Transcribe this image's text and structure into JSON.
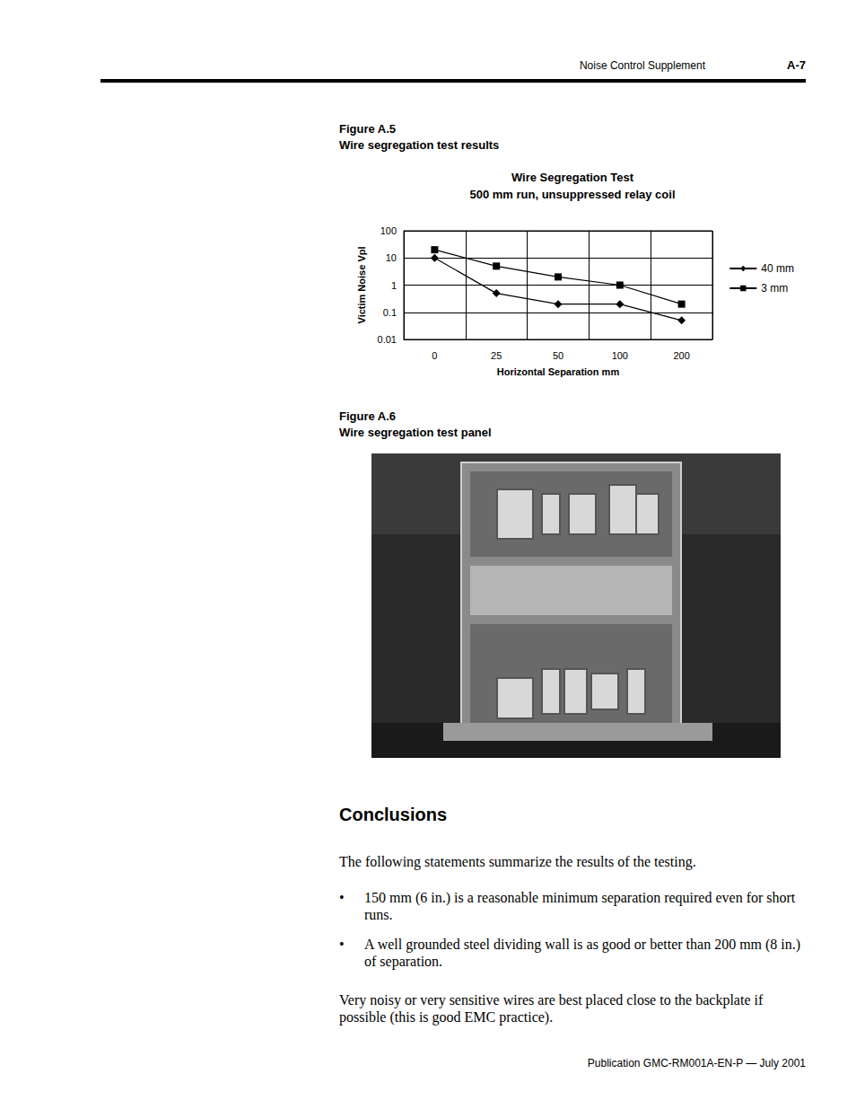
{
  "header": {
    "section": "Noise Control Supplement",
    "page": "A-7"
  },
  "figures": [
    {
      "label": "Figure A.5",
      "caption": "Wire segregation test results"
    },
    {
      "label": "Figure A.6",
      "caption": "Wire segregation test panel"
    }
  ],
  "chart_data": {
    "type": "line",
    "title": "Wire Segregation Test",
    "subtitle": "500 mm run, unsuppressed relay coil",
    "x_label": "Horizontal Separation mm",
    "y_label": "Victim Noise Vpl",
    "categories": [
      "0",
      "25",
      "50",
      "100",
      "200"
    ],
    "series": [
      {
        "name": "40 mm",
        "color": "#000000",
        "marker": "diamond",
        "values": [
          10,
          0.5,
          0.2,
          0.2,
          0.05
        ]
      },
      {
        "name": "3 mm",
        "color": "#000000",
        "marker": "square",
        "values": [
          20,
          5,
          2,
          1,
          0.2
        ]
      }
    ],
    "ylim": [
      0.01,
      100
    ],
    "yticks": [
      0.01,
      0.1,
      1,
      10,
      100
    ],
    "log": "y",
    "grid": true,
    "legend": "right"
  },
  "conclusions": {
    "heading": "Conclusions",
    "intro": "The following statements summarize the results of the testing.",
    "bullets": [
      "150 mm (6 in.) is a reasonable minimum separation required even for short runs.",
      "A well grounded steel dividing wall is as good or better than 200 mm (8 in.) of separation."
    ],
    "closing": "Very noisy or very sensitive wires are best placed close to the backplate if possible (this is good EMC practice)."
  },
  "footer": "Publication GMC-RM001A-EN-P — July 2001"
}
